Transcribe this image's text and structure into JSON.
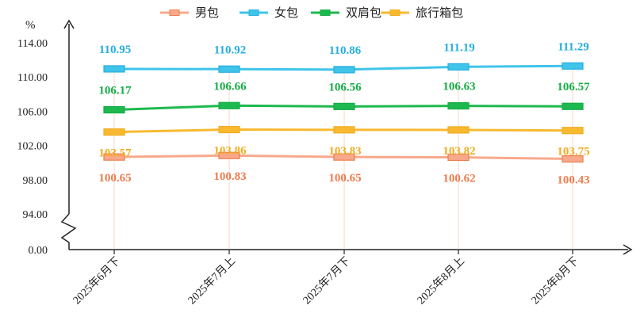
{
  "chart_data": {
    "type": "line",
    "unit_label": "%",
    "categories": [
      "2025年6月下",
      "2025年7月上",
      "2025年7月下",
      "2025年8月上",
      "2025年8月下"
    ],
    "y_ticks": [
      "0.00",
      "94.00",
      "98.00",
      "102.00",
      "106.00",
      "110.00",
      "114.00"
    ],
    "ylim": [
      94,
      114
    ],
    "axis_break": true,
    "grid": false,
    "legend_position": "top",
    "series": [
      {
        "name": "男包",
        "values": [
          100.65,
          100.83,
          100.65,
          100.62,
          100.43
        ],
        "labels": [
          "100.65",
          "100.83",
          "100.65",
          "100.62",
          "100.43"
        ],
        "color": "#f8a98c",
        "label_color": "#ed7d4e",
        "label_position": "below"
      },
      {
        "name": "女包",
        "values": [
          110.95,
          110.92,
          110.86,
          111.19,
          111.29
        ],
        "labels": [
          "110.95",
          "110.92",
          "110.86",
          "111.19",
          "111.29"
        ],
        "color": "#3fc4ea",
        "label_color": "#27aee0",
        "label_position": "above"
      },
      {
        "name": "双肩包",
        "values": [
          106.17,
          106.66,
          106.56,
          106.63,
          106.57
        ],
        "labels": [
          "106.17",
          "106.66",
          "106.56",
          "106.63",
          "106.57"
        ],
        "color": "#1db94e",
        "label_color": "#16ad46",
        "label_position": "above"
      },
      {
        "name": "旅行箱包",
        "values": [
          103.57,
          103.86,
          103.83,
          103.82,
          103.75
        ],
        "labels": [
          "103.57",
          "103.86",
          "103.83",
          "103.82",
          "103.75"
        ],
        "color": "#f8b931",
        "label_color": "#f0ad20",
        "label_position": "below"
      }
    ]
  }
}
